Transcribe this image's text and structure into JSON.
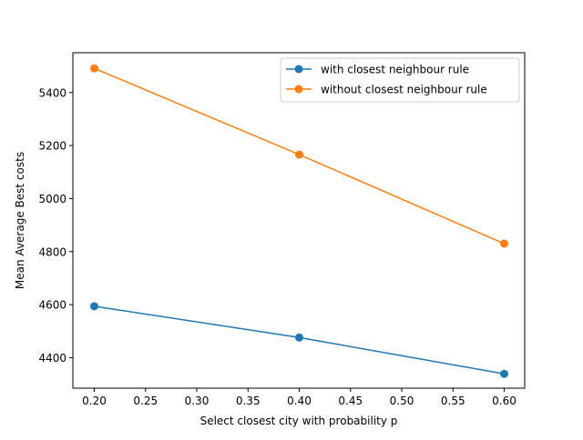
{
  "chart_data": {
    "type": "line",
    "title": "",
    "xlabel": "Select closest city with probability p",
    "ylabel": "Mean Average Best costs",
    "x": [
      0.2,
      0.4,
      0.6
    ],
    "xlim": [
      0.18,
      0.6
    ],
    "ylim": [
      4285,
      5550
    ],
    "xticks": [
      0.2,
      0.25,
      0.3,
      0.35,
      0.4,
      0.45,
      0.5,
      0.55,
      0.6
    ],
    "xtick_labels": [
      "0.20",
      "0.25",
      "0.30",
      "0.35",
      "0.40",
      "0.45",
      "0.50",
      "0.55",
      "0.60"
    ],
    "yticks": [
      4400,
      4600,
      4800,
      5000,
      5200,
      5400
    ],
    "ytick_labels": [
      "4400",
      "4600",
      "4800",
      "5000",
      "5200",
      "5400"
    ],
    "grid": false,
    "legend_position": "top-right",
    "series": [
      {
        "name": "with closest neighbour rule",
        "color": "#1f77b4",
        "marker": "circle",
        "values": [
          4594,
          4476,
          4339
        ]
      },
      {
        "name": "without closest neighbour rule",
        "color": "#ff7f0e",
        "marker": "circle",
        "values": [
          5491,
          5166,
          4830
        ]
      }
    ]
  }
}
